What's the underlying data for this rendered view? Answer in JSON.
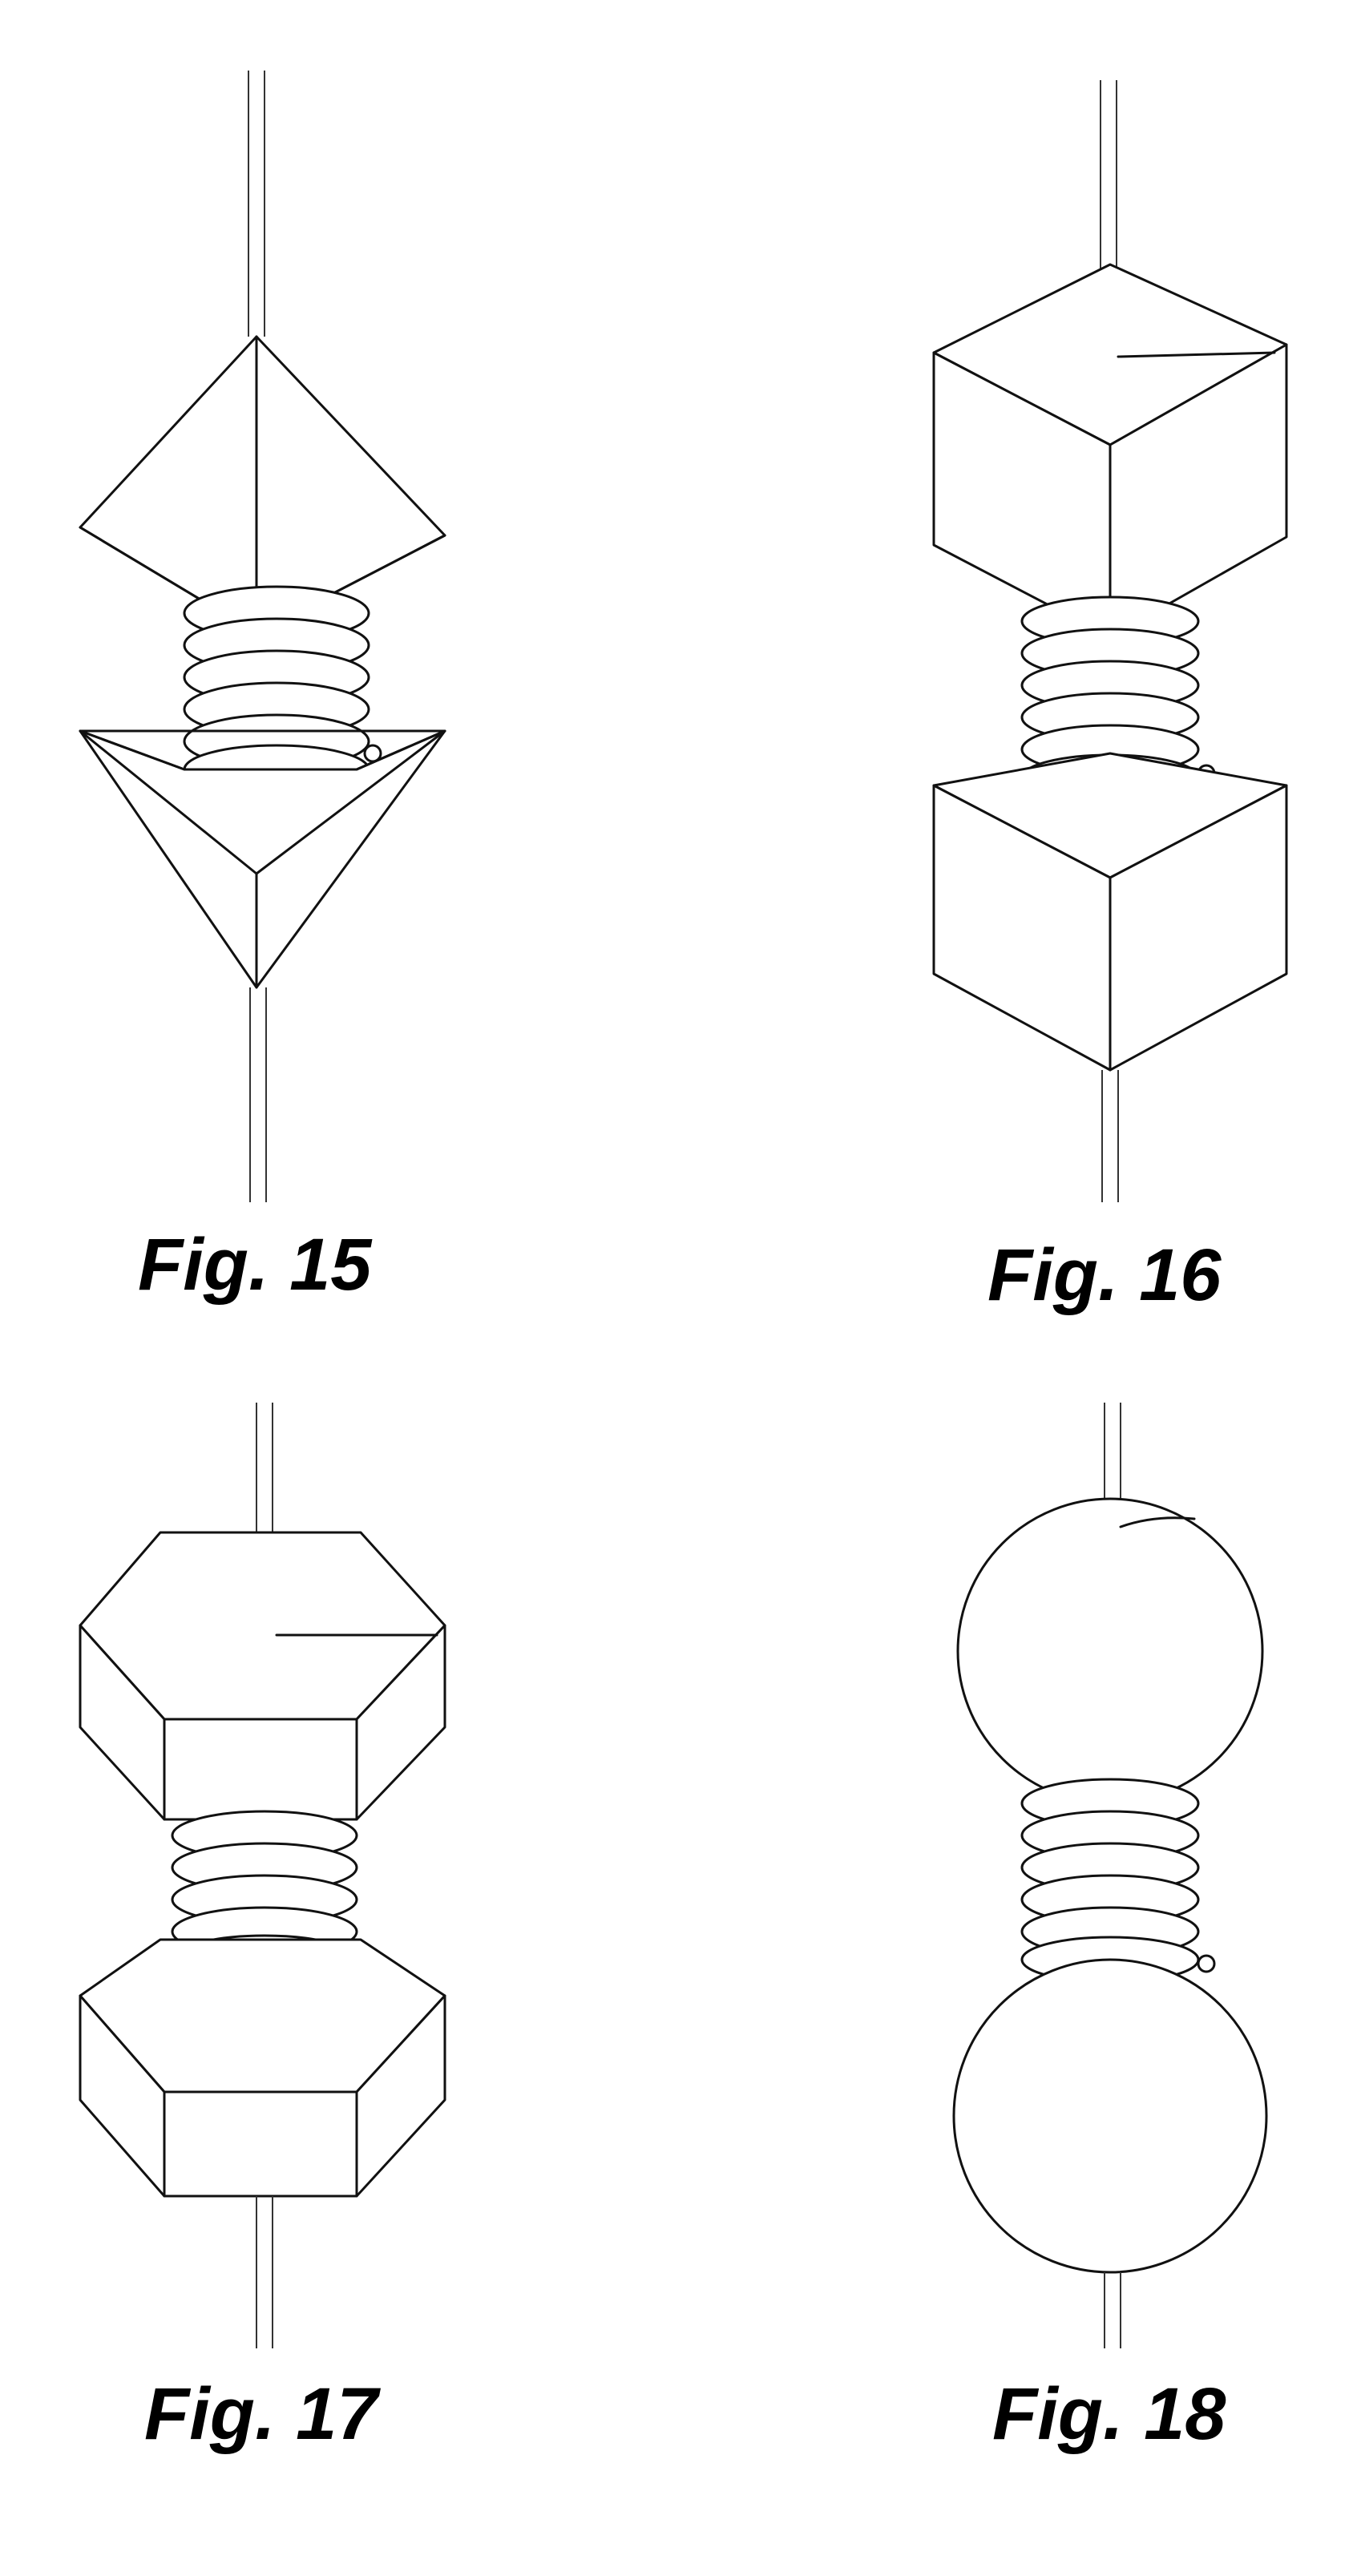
{
  "figures": [
    {
      "id": "fig-15",
      "label": "Fig. 15",
      "bead_shape": "pyramid"
    },
    {
      "id": "fig-16",
      "label": "Fig. 16",
      "bead_shape": "cube"
    },
    {
      "id": "fig-17",
      "label": "Fig. 17",
      "bead_shape": "hexagonal-prism"
    },
    {
      "id": "fig-18",
      "label": "Fig. 18",
      "bead_shape": "sphere"
    }
  ],
  "colors": {
    "line": "#111111",
    "fill": "#ffffff",
    "label": "#000000"
  }
}
